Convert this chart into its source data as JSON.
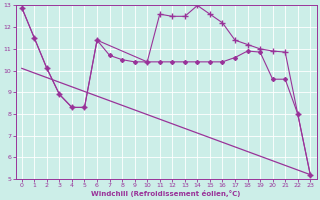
{
  "xlabel": "Windchill (Refroidissement éolien,°C)",
  "bg_color": "#cceee8",
  "line_color": "#993399",
  "xlim": [
    -0.5,
    23.5
  ],
  "ylim": [
    5,
    13
  ],
  "xticks": [
    0,
    1,
    2,
    3,
    4,
    5,
    6,
    7,
    8,
    9,
    10,
    11,
    12,
    13,
    14,
    15,
    16,
    17,
    18,
    19,
    20,
    21,
    22,
    23
  ],
  "yticks": [
    5,
    6,
    7,
    8,
    9,
    10,
    11,
    12,
    13
  ],
  "series": [
    {
      "x": [
        0,
        1,
        2,
        3,
        4,
        5,
        6,
        7,
        8,
        9,
        10,
        11,
        12,
        13,
        14,
        15,
        16,
        17,
        18,
        19,
        20,
        21,
        22,
        23
      ],
      "y": [
        12.9,
        11.5,
        10.1,
        8.9,
        8.3,
        8.3,
        11.4,
        10.7,
        10.5,
        10.4,
        10.4,
        10.4,
        10.4,
        10.4,
        10.4,
        10.4,
        10.4,
        10.6,
        10.9,
        10.85,
        9.6,
        9.6,
        8.0,
        5.2
      ],
      "marker": "D",
      "markersize": 2.0,
      "linewidth": 0.8
    },
    {
      "x": [
        0,
        1,
        2,
        3,
        4,
        5,
        6,
        10,
        11,
        12,
        13,
        14,
        15,
        16,
        17,
        18,
        19,
        20,
        21,
        22,
        23
      ],
      "y": [
        12.9,
        11.5,
        10.1,
        8.9,
        8.3,
        8.3,
        11.4,
        10.4,
        12.6,
        12.5,
        12.5,
        13.0,
        12.6,
        12.2,
        11.4,
        11.2,
        11.0,
        10.9,
        10.85,
        8.0,
        5.2
      ],
      "marker": "+",
      "markersize": 4.0,
      "linewidth": 0.8
    },
    {
      "x": [
        0,
        23
      ],
      "y": [
        10.1,
        5.2
      ],
      "marker": null,
      "markersize": 0,
      "linewidth": 0.9
    }
  ]
}
